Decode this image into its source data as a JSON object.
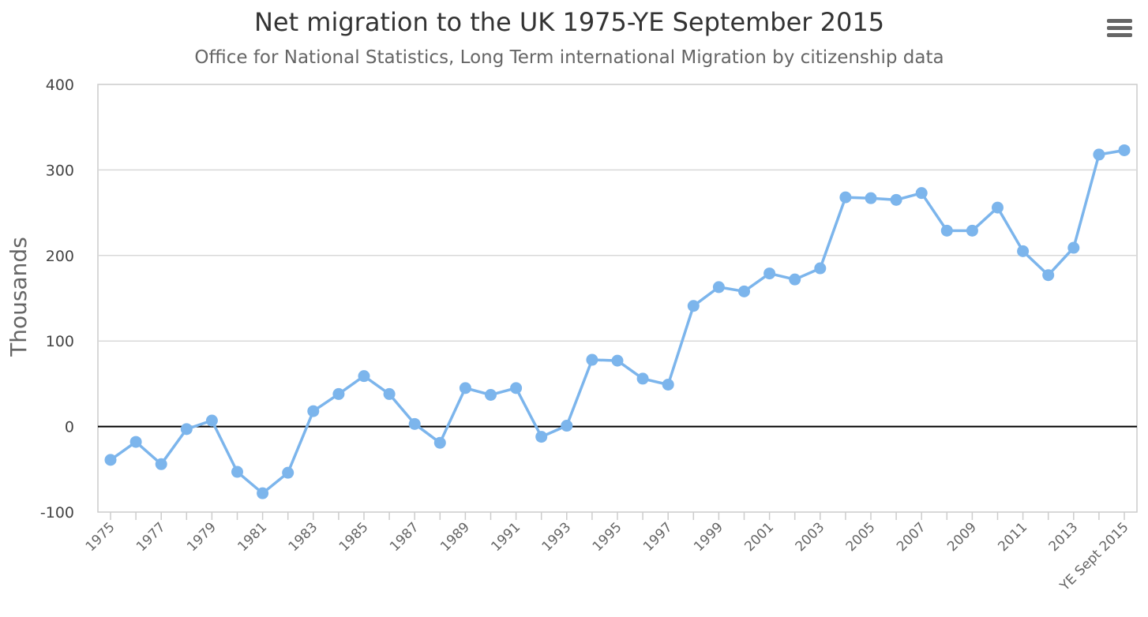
{
  "menu": {
    "icon": "hamburger-menu-icon",
    "color": "#666666"
  },
  "chart_data": {
    "type": "line",
    "title": "Net migration to the UK 1975-YE September 2015",
    "subtitle": "Office for National Statistics, Long Term international Migration by citizenship data",
    "xlabel": "",
    "ylabel": "Thousands",
    "ylim": [
      -100,
      400
    ],
    "yticks": [
      -100,
      0,
      100,
      200,
      300,
      400
    ],
    "grid": true,
    "zero_line": true,
    "legend": "none",
    "categories": [
      "1975",
      "1976",
      "1977",
      "1978",
      "1979",
      "1980",
      "1981",
      "1982",
      "1983",
      "1984",
      "1985",
      "1986",
      "1987",
      "1988",
      "1989",
      "1990",
      "1991",
      "1992",
      "1993",
      "1994",
      "1995",
      "1996",
      "1997",
      "1998",
      "1999",
      "2000",
      "2001",
      "2002",
      "2003",
      "2004",
      "2005",
      "2006",
      "2007",
      "2008",
      "2009",
      "2010",
      "2011",
      "2012",
      "2013",
      "2014",
      "YE Sept 2015"
    ],
    "xtick_labels": [
      "1975",
      "1977",
      "1979",
      "1981",
      "1983",
      "1985",
      "1987",
      "1989",
      "1991",
      "1993",
      "1995",
      "1997",
      "1999",
      "2001",
      "2003",
      "2005",
      "2007",
      "2009",
      "2011",
      "2013",
      "YE Sept 2015"
    ],
    "series": [
      {
        "color": "#7cb5ec",
        "values": [
          -39,
          -18,
          -44,
          -3,
          7,
          -53,
          -78,
          -54,
          18,
          38,
          59,
          38,
          3,
          -19,
          45,
          37,
          45,
          -12,
          1,
          78,
          77,
          56,
          49,
          141,
          163,
          158,
          179,
          172,
          185,
          268,
          267,
          265,
          273,
          229,
          229,
          256,
          205,
          177,
          209,
          318,
          323
        ]
      }
    ]
  }
}
